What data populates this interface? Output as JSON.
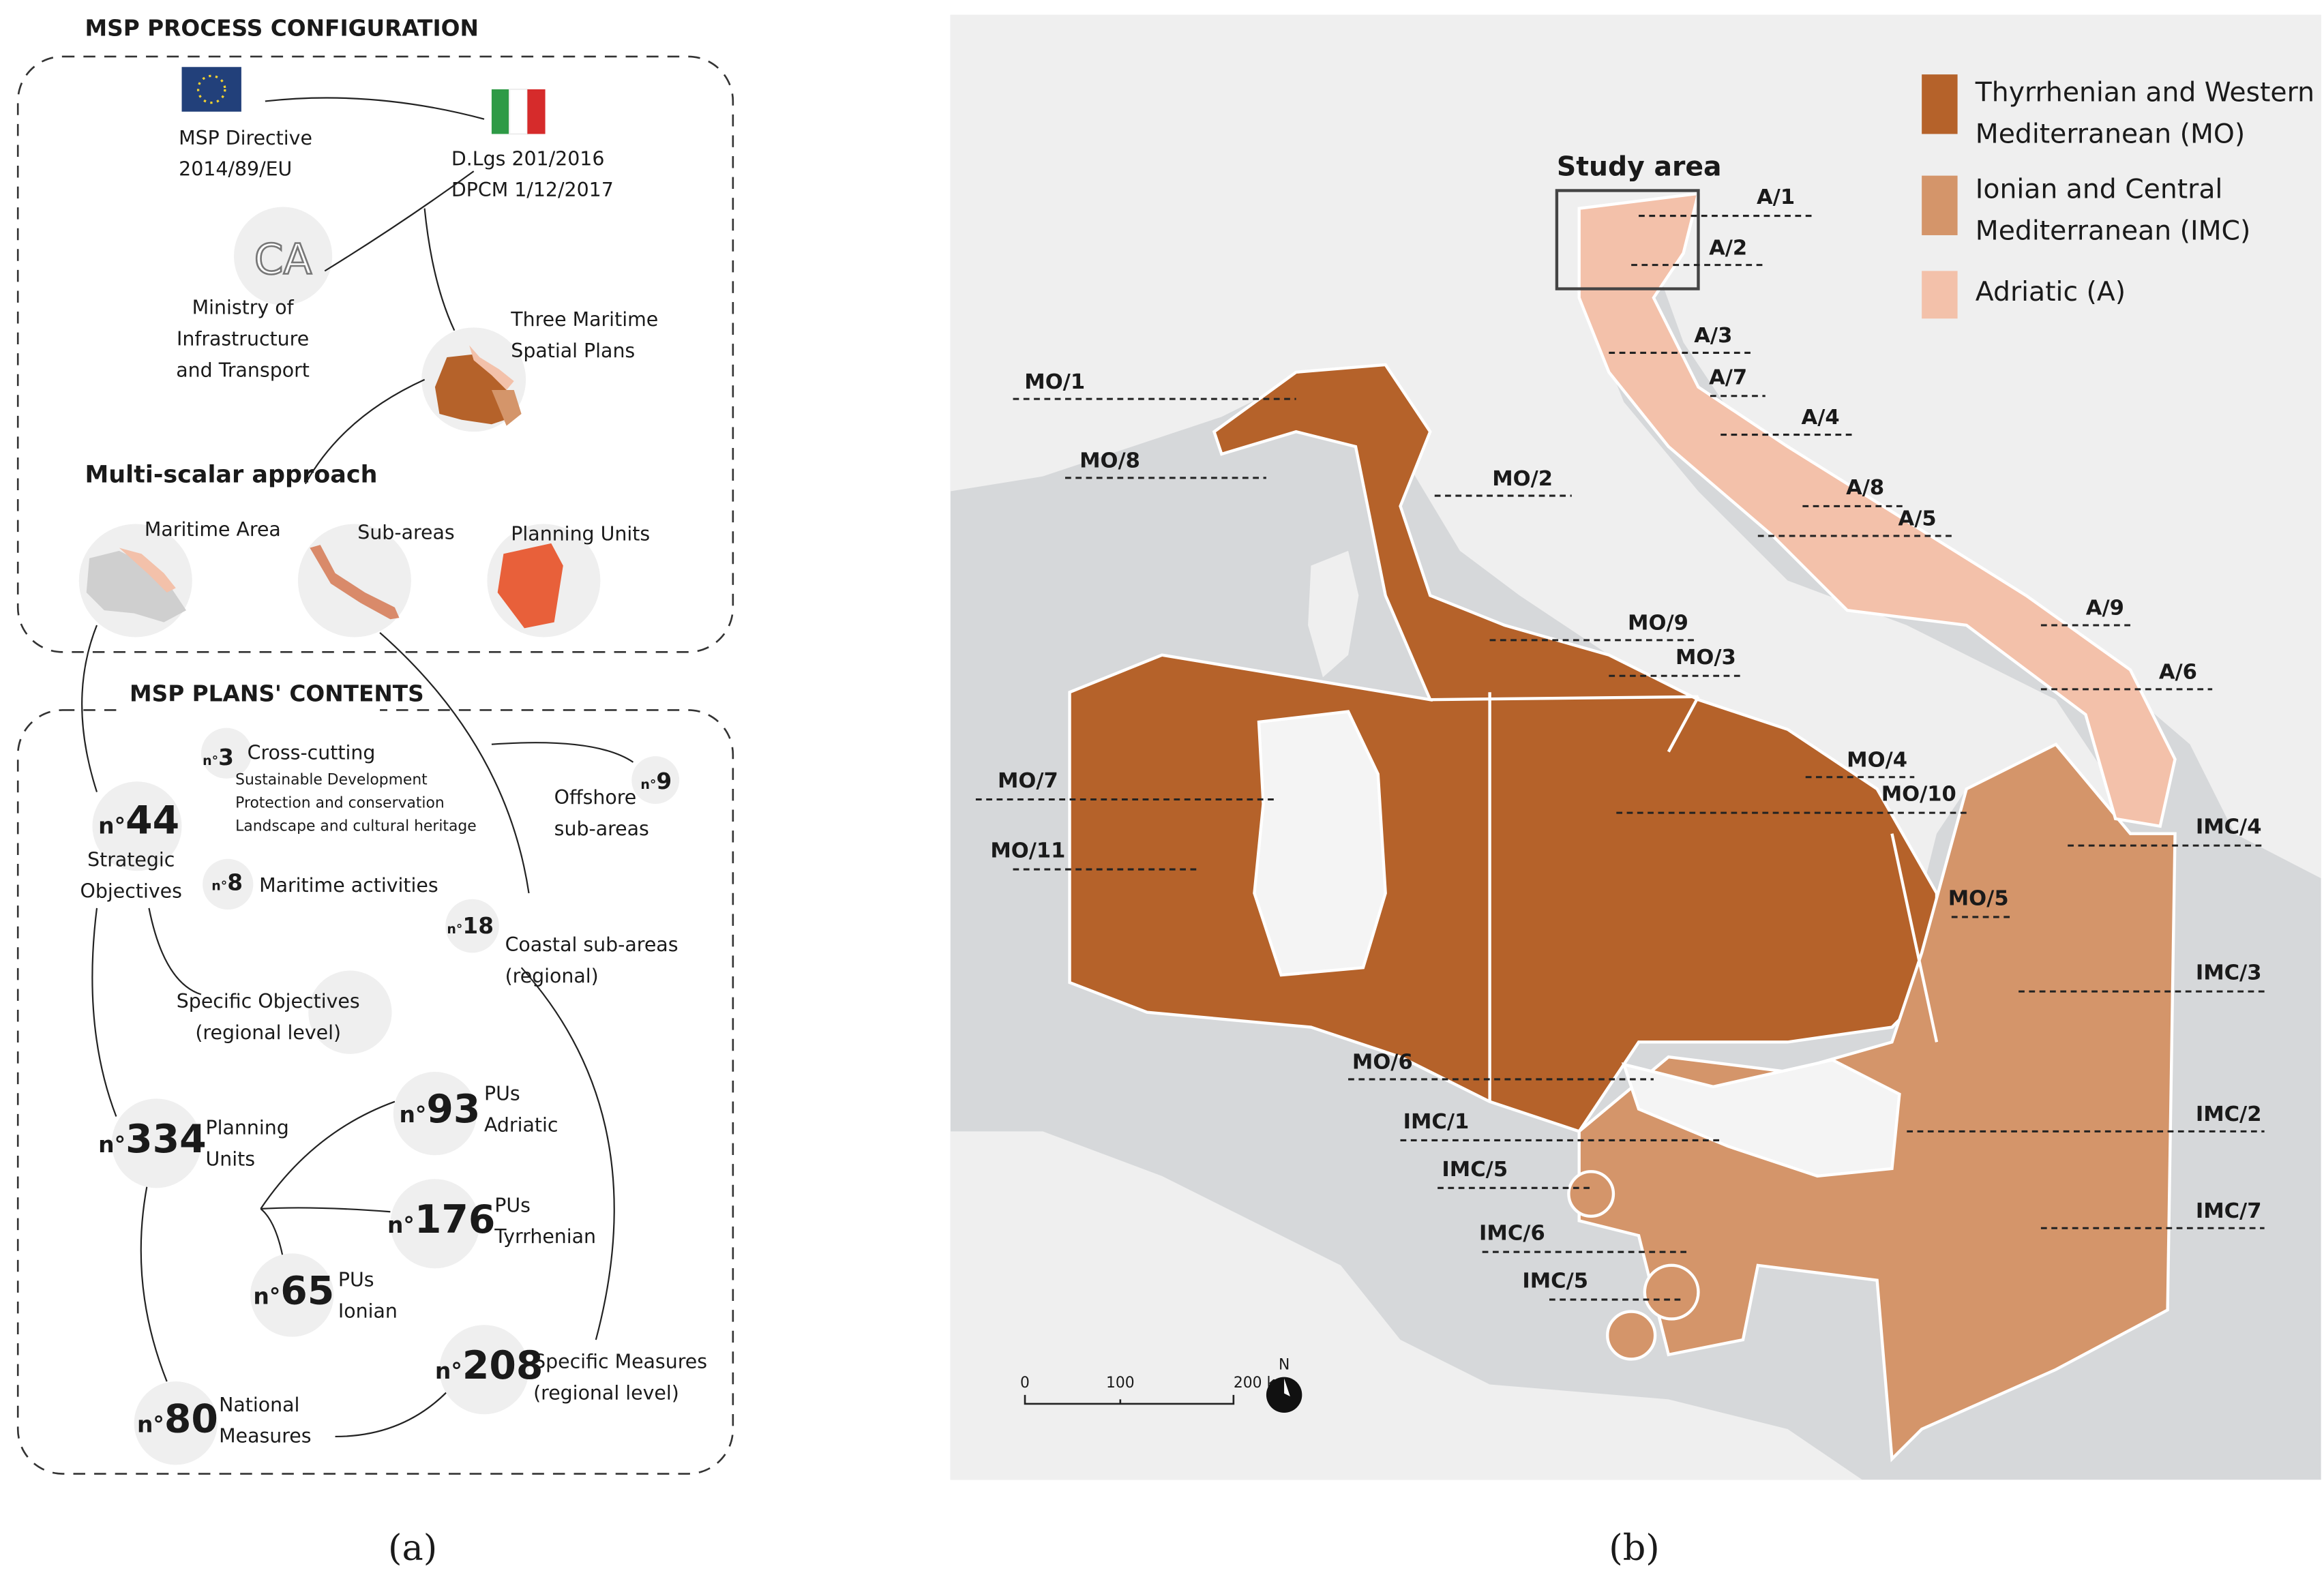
{
  "panel_a": {
    "section1_title": "MSP PROCESS CONFIGURATION",
    "eu_directive": [
      "MSP Directive",
      "2014/89/EU"
    ],
    "italian_law": [
      "D.Lgs 201/2016",
      "DPCM 1/12/2017"
    ],
    "ministry_logo": "CA",
    "ministry": [
      "Ministry of",
      "Infrastructure",
      "and Transport"
    ],
    "plans": [
      "Three Maritime",
      "Spatial Plans"
    ],
    "multi_scalar_title": "Multi-scalar approach",
    "scales": [
      "Maritime Area",
      "Sub-areas",
      "Planning Units"
    ],
    "section2_title": "MSP PLANS' CONTENTS",
    "counts": [
      {
        "prefix": "n°",
        "number": 3,
        "label": [
          "Cross-cutting"
        ]
      },
      {
        "prefix": "n°",
        "number": 44,
        "label": [
          "Strategic",
          "Objectives"
        ]
      },
      {
        "prefix": "n°",
        "number": 8,
        "label": [
          "Maritime activities"
        ]
      },
      {
        "prefix": "n°",
        "number": 9,
        "label": [
          "Offshore",
          "sub-areas"
        ]
      },
      {
        "prefix": "n°",
        "number": 18,
        "label": [
          "Coastal sub-areas",
          "(regional)"
        ]
      },
      {
        "prefix": "n°",
        "number": 334,
        "label": [
          "Planning",
          "Units"
        ]
      },
      {
        "prefix": "n°",
        "number": 93,
        "label": [
          "PUs",
          "Adriatic"
        ]
      },
      {
        "prefix": "n°",
        "number": 176,
        "label": [
          "PUs",
          "Tyrrhenian"
        ]
      },
      {
        "prefix": "n°",
        "number": 65,
        "label": [
          "PUs",
          "Ionian"
        ]
      },
      {
        "prefix": "n°",
        "number": 80,
        "label": [
          "National",
          "Measures"
        ]
      },
      {
        "prefix": "n°",
        "number": 208,
        "label": [
          "Specific Measures",
          "(regional level)"
        ]
      }
    ],
    "cross_cutting_items": [
      "Sustainable Development",
      "Protection and conservation",
      "Landscape and cultural heritage"
    ],
    "specific_objectives": [
      "Specific Objectives",
      "(regional level)"
    ],
    "caption": "(a)"
  },
  "panel_b": {
    "legend": [
      {
        "label": [
          "Thyrrhenian and Western",
          "Mediterranean (MO)"
        ],
        "color": "#b5622a"
      },
      {
        "label": [
          "Ionian and Central",
          "Mediterranean (IMC)"
        ],
        "color": "#d4956a"
      },
      {
        "label": [
          "Adriatic (A)"
        ],
        "color": "#f3c1aa"
      }
    ],
    "study_area": "Study area",
    "labels": [
      "A/1",
      "A/2",
      "A/3",
      "A/7",
      "A/4",
      "A/8",
      "A/5",
      "A/9",
      "A/6",
      "MO/1",
      "MO/8",
      "MO/2",
      "MO/9",
      "MO/3",
      "MO/4",
      "MO/10",
      "MO/5",
      "MO/7",
      "MO/11",
      "MO/6",
      "IMC/1",
      "IMC/5",
      "IMC/6",
      "IMC/5",
      "IMC/4",
      "IMC/3",
      "IMC/2",
      "IMC/7"
    ],
    "scale_bar": [
      "0",
      "100",
      "200 km"
    ],
    "north": "N",
    "caption": "(b)"
  }
}
